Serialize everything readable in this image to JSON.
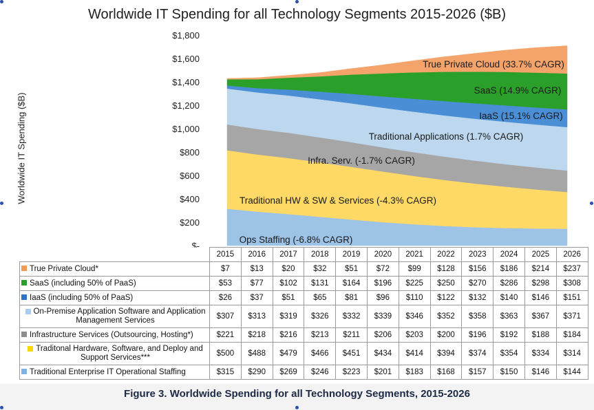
{
  "chart_data": {
    "type": "area",
    "title": "Worldwide IT Spending for all Technology Segments 2015-2026 ($B)",
    "ylabel": "Worldwide IT Spending ($B)",
    "ylim": [
      0,
      1800
    ],
    "yticks": [
      "$-",
      "$200",
      "$400",
      "$600",
      "$800",
      "$1,000",
      "$1,200",
      "$1,400",
      "$1,600",
      "$1,800"
    ],
    "categories": [
      "2015",
      "2016",
      "2017",
      "2018",
      "2019",
      "2020",
      "2021",
      "2022",
      "2023",
      "2024",
      "2025",
      "2026"
    ],
    "stacked": true,
    "series": [
      {
        "name": "Traditional Enterprise IT Operational Staffing",
        "area_label": "Ops Staffing (-6.8% CAGR)",
        "color": "#9dc3e6",
        "values": [
          315,
          290,
          269,
          246,
          223,
          201,
          183,
          168,
          157,
          150,
          146,
          144
        ],
        "display": [
          "$315",
          "$290",
          "$269",
          "$246",
          "$223",
          "$201",
          "$183",
          "$168",
          "$157",
          "$150",
          "$146",
          "$144"
        ]
      },
      {
        "name": "Traditonal Hardware, Software, and Deploy and Support Services***",
        "area_label": "Traditional HW & SW & Services (-4.3% CAGR)",
        "color": "#ffd966",
        "values": [
          500,
          488,
          479,
          466,
          451,
          434,
          414,
          394,
          374,
          354,
          334,
          314
        ],
        "display": [
          "$500",
          "$488",
          "$479",
          "$466",
          "$451",
          "$434",
          "$414",
          "$394",
          "$374",
          "$354",
          "$334",
          "$314"
        ]
      },
      {
        "name": "Infrastructure Services (Outsourcing, Hosting*)",
        "area_label": "Infra. Serv. (-1.7% CAGR)",
        "color": "#a6a6a6",
        "values": [
          221,
          218,
          216,
          213,
          211,
          206,
          203,
          200,
          196,
          192,
          188,
          184
        ],
        "display": [
          "$221",
          "$218",
          "$216",
          "$213",
          "$211",
          "$206",
          "$203",
          "$200",
          "$196",
          "$192",
          "$188",
          "$184"
        ]
      },
      {
        "name": "On-Premise Application Software and Application Management Services",
        "area_label": "Traditional Applications (1.7% CAGR)",
        "color": "#bdd7ee",
        "values": [
          307,
          313,
          319,
          326,
          332,
          339,
          346,
          352,
          358,
          363,
          367,
          371
        ],
        "display": [
          "$307",
          "$313",
          "$319",
          "$326",
          "$332",
          "$339",
          "$346",
          "$352",
          "$358",
          "$363",
          "$367",
          "$371"
        ]
      },
      {
        "name": "IaaS (including 50% of PaaS)",
        "area_label": "IaaS (15.1% CAGR)",
        "color": "#4a8fd6",
        "values": [
          26,
          37,
          51,
          65,
          81,
          96,
          110,
          122,
          132,
          140,
          146,
          151
        ],
        "display": [
          "$26",
          "$37",
          "$51",
          "$65",
          "$81",
          "$96",
          "$110",
          "$122",
          "$132",
          "$140",
          "$146",
          "$151"
        ]
      },
      {
        "name": "SaaS (including 50% of PaaS)",
        "area_label": "SaaS (14.9% CAGR)",
        "color": "#2aa02a",
        "values": [
          53,
          77,
          102,
          131,
          164,
          196,
          225,
          250,
          270,
          286,
          298,
          308
        ],
        "display": [
          "$53",
          "$77",
          "$102",
          "$131",
          "$164",
          "$196",
          "$225",
          "$250",
          "$270",
          "$286",
          "$298",
          "$308"
        ]
      },
      {
        "name": "True Private Cloud*",
        "area_label": "True Private Cloud (33.7% CAGR)",
        "color": "#f4a46a",
        "values": [
          7,
          13,
          20,
          32,
          51,
          72,
          99,
          128,
          156,
          186,
          214,
          237
        ],
        "display": [
          "$7",
          "$13",
          "$20",
          "$32",
          "$51",
          "$72",
          "$99",
          "$128",
          "$156",
          "$186",
          "$214",
          "$237"
        ]
      }
    ]
  },
  "table": {
    "row_order": [
      6,
      5,
      4,
      3,
      2,
      1,
      0
    ],
    "legend_colors": [
      "#f39a55",
      "#2aa02a",
      "#2f75c5",
      "#a9cdf0",
      "#8c8c8c",
      "#ffd700",
      "#7fb2e3"
    ]
  },
  "caption": "Figure 3. Worldwide Spending for all Technology Segments, 2015-2026"
}
